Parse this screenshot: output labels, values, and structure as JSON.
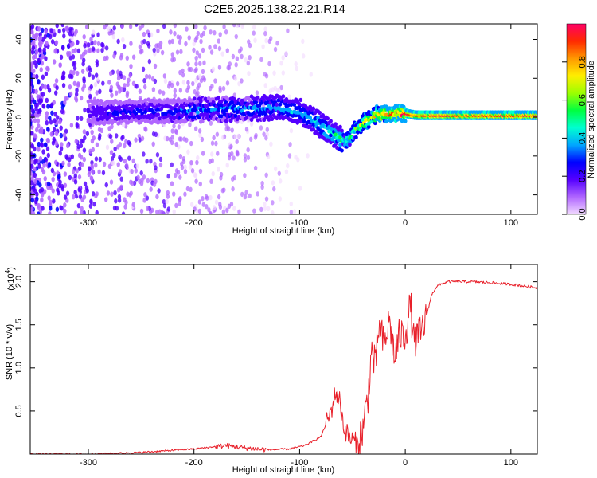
{
  "title": "C2E5.2025.138.22.21.R14",
  "chart_data": [
    {
      "type": "heatmap",
      "xlabel": "Height of straight line (km)",
      "ylabel": "Frequency (Hz)",
      "xlim": [
        -355,
        125
      ],
      "ylim": [
        -50,
        48
      ],
      "x_ticks": [
        -300,
        -200,
        -100,
        0,
        100
      ],
      "y_ticks": [
        -40,
        -20,
        0,
        20,
        40
      ],
      "colorbar": {
        "label": "Normalized spectral amplitude",
        "range": [
          0.0,
          1.0
        ],
        "ticks": [
          0.0,
          0.2,
          0.4,
          0.6,
          0.8
        ],
        "tick_labels": [
          "0.0",
          "0.2",
          "0.4",
          "0.6",
          "0.8"
        ],
        "colors": [
          "#f2d9ff",
          "#b066ff",
          "#5500ff",
          "#0000ff",
          "#00a6ff",
          "#00ffd0",
          "#00ff40",
          "#9cff00",
          "#ffee00",
          "#ff9900",
          "#ff2a00",
          "#ff0066"
        ]
      },
      "ridge": {
        "x": [
          -300,
          -260,
          -220,
          -180,
          -150,
          -120,
          -100,
          -80,
          -65,
          -55,
          -48,
          -40,
          -30,
          -20,
          -10,
          0,
          10,
          125
        ],
        "frequency": [
          2,
          3,
          3,
          4,
          4.5,
          5,
          3,
          -4,
          -10,
          -13,
          -7,
          -3,
          1,
          2,
          2,
          2,
          1,
          1
        ],
        "peak_amplitude": [
          0.22,
          0.26,
          0.3,
          0.34,
          0.36,
          0.38,
          0.4,
          0.45,
          0.5,
          0.55,
          0.62,
          0.7,
          0.78,
          0.85,
          0.9,
          0.95,
          0.98,
          0.98
        ]
      }
    },
    {
      "type": "line",
      "xlabel": "Height of straight line (km)",
      "ylabel": "SNR (10 * v/v)",
      "y_multiplier": "(x10",
      "y_multiplier_exp": "4",
      "xlim": [
        -355,
        125
      ],
      "ylim": [
        0,
        2.2
      ],
      "x_ticks": [
        -300,
        -200,
        -100,
        0,
        100
      ],
      "y_ticks": [
        0.5,
        1.0,
        1.5,
        2.0
      ],
      "y_tick_labels": [
        "0.5",
        "1.0",
        "1.5",
        "2.0"
      ],
      "color": "#e8202a",
      "series": [
        {
          "x": [
            -355,
            -300,
            -250,
            -200,
            -170,
            -150,
            -130,
            -110,
            -95,
            -80,
            -70,
            -66,
            -62,
            -58,
            -52,
            -45,
            -40,
            -35,
            -32,
            -28,
            -25,
            -20,
            -15,
            -10,
            -5,
            -2,
            2,
            5,
            8,
            15,
            20,
            25,
            30,
            40,
            50,
            60,
            80,
            100,
            125
          ],
          "y": [
            0.0,
            0.0,
            0.02,
            0.06,
            0.1,
            0.07,
            0.05,
            0.06,
            0.1,
            0.2,
            0.5,
            0.72,
            0.62,
            0.3,
            0.18,
            0.12,
            0.3,
            0.7,
            1.2,
            1.0,
            1.5,
            1.25,
            1.55,
            1.1,
            1.4,
            1.35,
            1.5,
            1.75,
            1.3,
            1.4,
            1.6,
            1.85,
            1.95,
            2.0,
            2.0,
            2.0,
            1.99,
            1.97,
            1.93
          ]
        }
      ]
    }
  ]
}
